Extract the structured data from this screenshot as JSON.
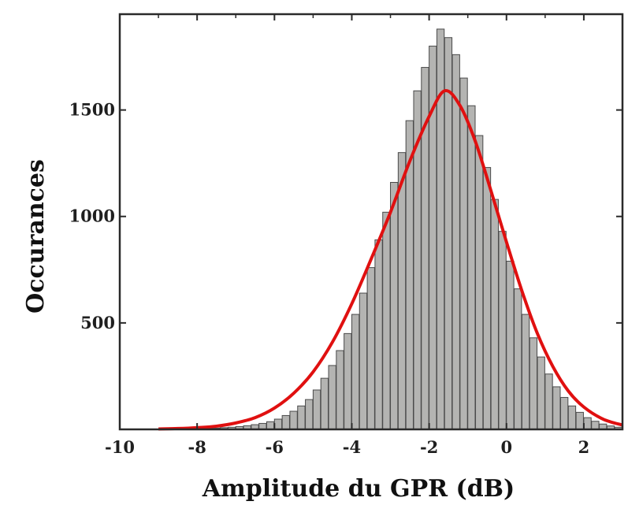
{
  "chart_data": {
    "type": "bar",
    "title": "",
    "xlabel": "Amplitude du GPR (dB)",
    "ylabel": "Occurances",
    "xlim": [
      -10,
      3
    ],
    "ylim": [
      0,
      1950
    ],
    "xticks": [
      -10,
      -8,
      -6,
      -4,
      -2,
      0,
      2
    ],
    "xtick_labels": [
      "-10",
      "-8",
      "-6",
      "-4",
      "-2",
      "0",
      "2"
    ],
    "yticks": [
      500,
      1000,
      1500
    ],
    "ytick_labels": [
      "500",
      "1000",
      "1500"
    ],
    "grid": false,
    "bin_width": 0.2,
    "bins": {
      "x": [
        -8.2,
        -8.0,
        -7.8,
        -7.6,
        -7.4,
        -7.2,
        -7.0,
        -6.8,
        -6.6,
        -6.4,
        -6.2,
        -6.0,
        -5.8,
        -5.6,
        -5.4,
        -5.2,
        -5.0,
        -4.8,
        -4.6,
        -4.4,
        -4.2,
        -4.0,
        -3.8,
        -3.6,
        -3.4,
        -3.2,
        -3.0,
        -2.8,
        -2.6,
        -2.4,
        -2.2,
        -2.0,
        -1.8,
        -1.6,
        -1.4,
        -1.2,
        -1.0,
        -0.8,
        -0.6,
        -0.4,
        -0.2,
        0.0,
        0.2,
        0.4,
        0.6,
        0.8,
        1.0,
        1.2,
        1.4,
        1.6,
        1.8,
        2.0,
        2.2,
        2.4,
        2.6,
        2.8
      ],
      "counts": [
        3,
        4,
        5,
        6,
        8,
        10,
        13,
        17,
        22,
        28,
        36,
        48,
        65,
        85,
        110,
        140,
        185,
        240,
        300,
        370,
        450,
        540,
        640,
        760,
        890,
        1020,
        1160,
        1300,
        1450,
        1590,
        1700,
        1800,
        1880,
        1840,
        1760,
        1650,
        1520,
        1380,
        1230,
        1080,
        930,
        790,
        660,
        540,
        430,
        340,
        260,
        200,
        150,
        110,
        80,
        55,
        38,
        25,
        16,
        10
      ]
    },
    "series": [
      {
        "type": "line",
        "color": "#e01010",
        "x": [
          -9.0,
          -8.5,
          -8.0,
          -7.5,
          -7.0,
          -6.5,
          -6.0,
          -5.5,
          -5.0,
          -4.5,
          -4.0,
          -3.5,
          -3.0,
          -2.5,
          -2.0,
          -1.6,
          -1.2,
          -0.8,
          -0.4,
          0.0,
          0.4,
          0.8,
          1.2,
          1.6,
          2.0,
          2.5,
          3.0
        ],
        "y": [
          2,
          4,
          8,
          15,
          30,
          55,
          100,
          170,
          270,
          410,
          590,
          800,
          1020,
          1260,
          1470,
          1590,
          1520,
          1350,
          1120,
          880,
          650,
          450,
          295,
          180,
          105,
          48,
          20
        ]
      }
    ]
  }
}
